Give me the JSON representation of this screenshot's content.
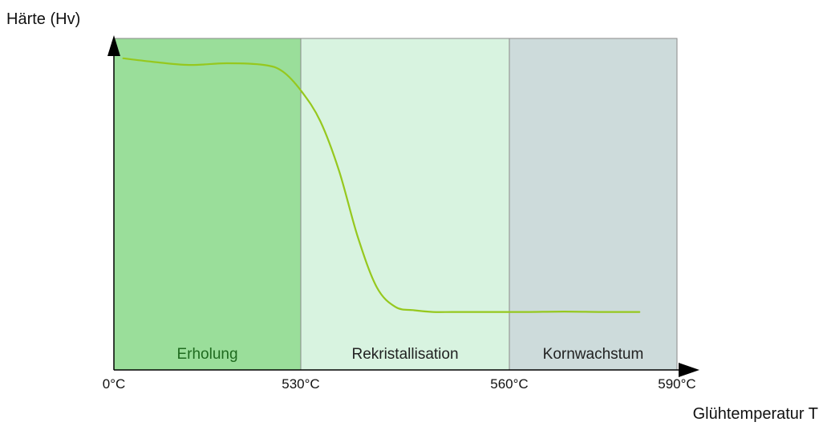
{
  "chart_data": {
    "type": "line",
    "title": "",
    "ylabel": "Härte (Hv)",
    "xlabel": "Glühtemperatur T",
    "x_ticks": [
      "0°C",
      "530°C",
      "560°C",
      "590°C"
    ],
    "regions": [
      {
        "label": "Erholung",
        "from": 0,
        "to": 1,
        "color": "#9ade9a",
        "label_color": "#1f6b1f"
      },
      {
        "label": "Rekristallisation",
        "from": 1,
        "to": 2,
        "color": "#d8f3e0",
        "label_color": "#222222"
      },
      {
        "label": "Kornwachstum",
        "from": 2,
        "to": 3,
        "color": "#cddbdb",
        "label_color": "#222222"
      }
    ],
    "series": [
      {
        "color": "#96c81e",
        "x": [
          0.05,
          0.2,
          0.4,
          0.6,
          0.8,
          0.9,
          1.0,
          1.1,
          1.2,
          1.3,
          1.4,
          1.5,
          1.6,
          1.7,
          1.8,
          1.9,
          2.0,
          2.2,
          2.4,
          2.6,
          2.8
        ],
        "y": [
          0.94,
          0.93,
          0.92,
          0.925,
          0.92,
          0.9,
          0.84,
          0.75,
          0.6,
          0.4,
          0.25,
          0.19,
          0.18,
          0.175,
          0.175,
          0.175,
          0.175,
          0.175,
          0.176,
          0.175,
          0.175
        ]
      }
    ],
    "grid": false,
    "legend": "none",
    "xlim": [
      0,
      3
    ],
    "ylim": [
      0,
      1
    ]
  }
}
